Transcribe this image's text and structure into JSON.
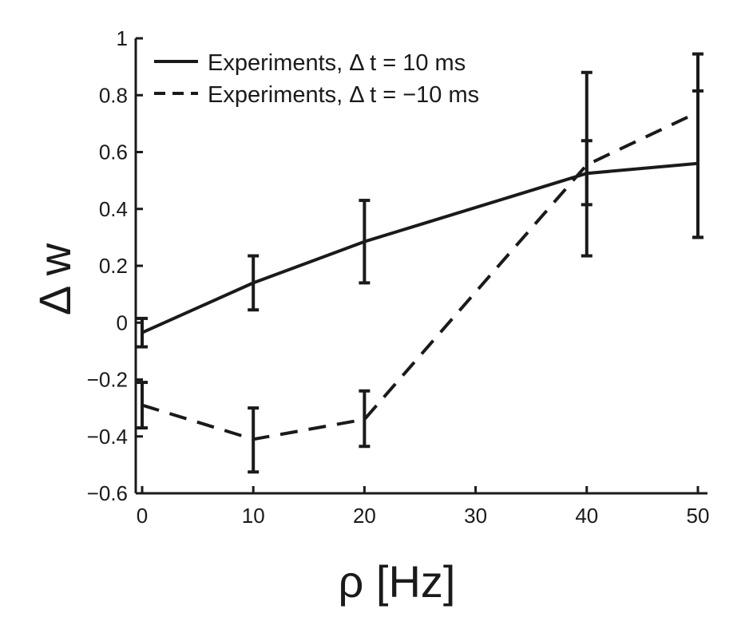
{
  "chart_data": {
    "type": "line",
    "xlabel": "ρ [Hz]",
    "ylabel": "Δ w",
    "xlim": [
      0,
      50
    ],
    "ylim": [
      -0.6,
      1
    ],
    "xticks": [
      0,
      10,
      20,
      30,
      40,
      50
    ],
    "yticks": [
      -0.6,
      -0.4,
      -0.2,
      0,
      0.2,
      0.4,
      0.6,
      0.8,
      1
    ],
    "xtick_labels": [
      "0",
      "10",
      "20",
      "30",
      "40",
      "50"
    ],
    "ytick_labels": [
      "−0.6",
      "−0.4",
      "−0.2",
      "0",
      "0.2",
      "0.4",
      "0.6",
      "0.8",
      "1"
    ],
    "grid": false,
    "legend_position": "top-left",
    "series": [
      {
        "name": "Experiments, Δ t = 10 ms",
        "style": "solid",
        "x": [
          0,
          10,
          20,
          40,
          50
        ],
        "y": [
          -0.035,
          0.14,
          0.285,
          0.525,
          0.56
        ],
        "yerr_low": [
          -0.085,
          0.045,
          0.14,
          0.415,
          0.3
        ],
        "yerr_high": [
          0.015,
          0.235,
          0.43,
          0.64,
          0.815
        ]
      },
      {
        "name": "Experiments, Δ t = −10 ms",
        "style": "dashed",
        "x": [
          0,
          10,
          20,
          40,
          50
        ],
        "y": [
          -0.29,
          -0.41,
          -0.34,
          0.555,
          0.74
        ],
        "yerr_low": [
          -0.37,
          -0.525,
          -0.435,
          0.235,
          0.3
        ],
        "yerr_high": [
          -0.21,
          -0.3,
          -0.24,
          0.88,
          0.945
        ]
      }
    ]
  }
}
